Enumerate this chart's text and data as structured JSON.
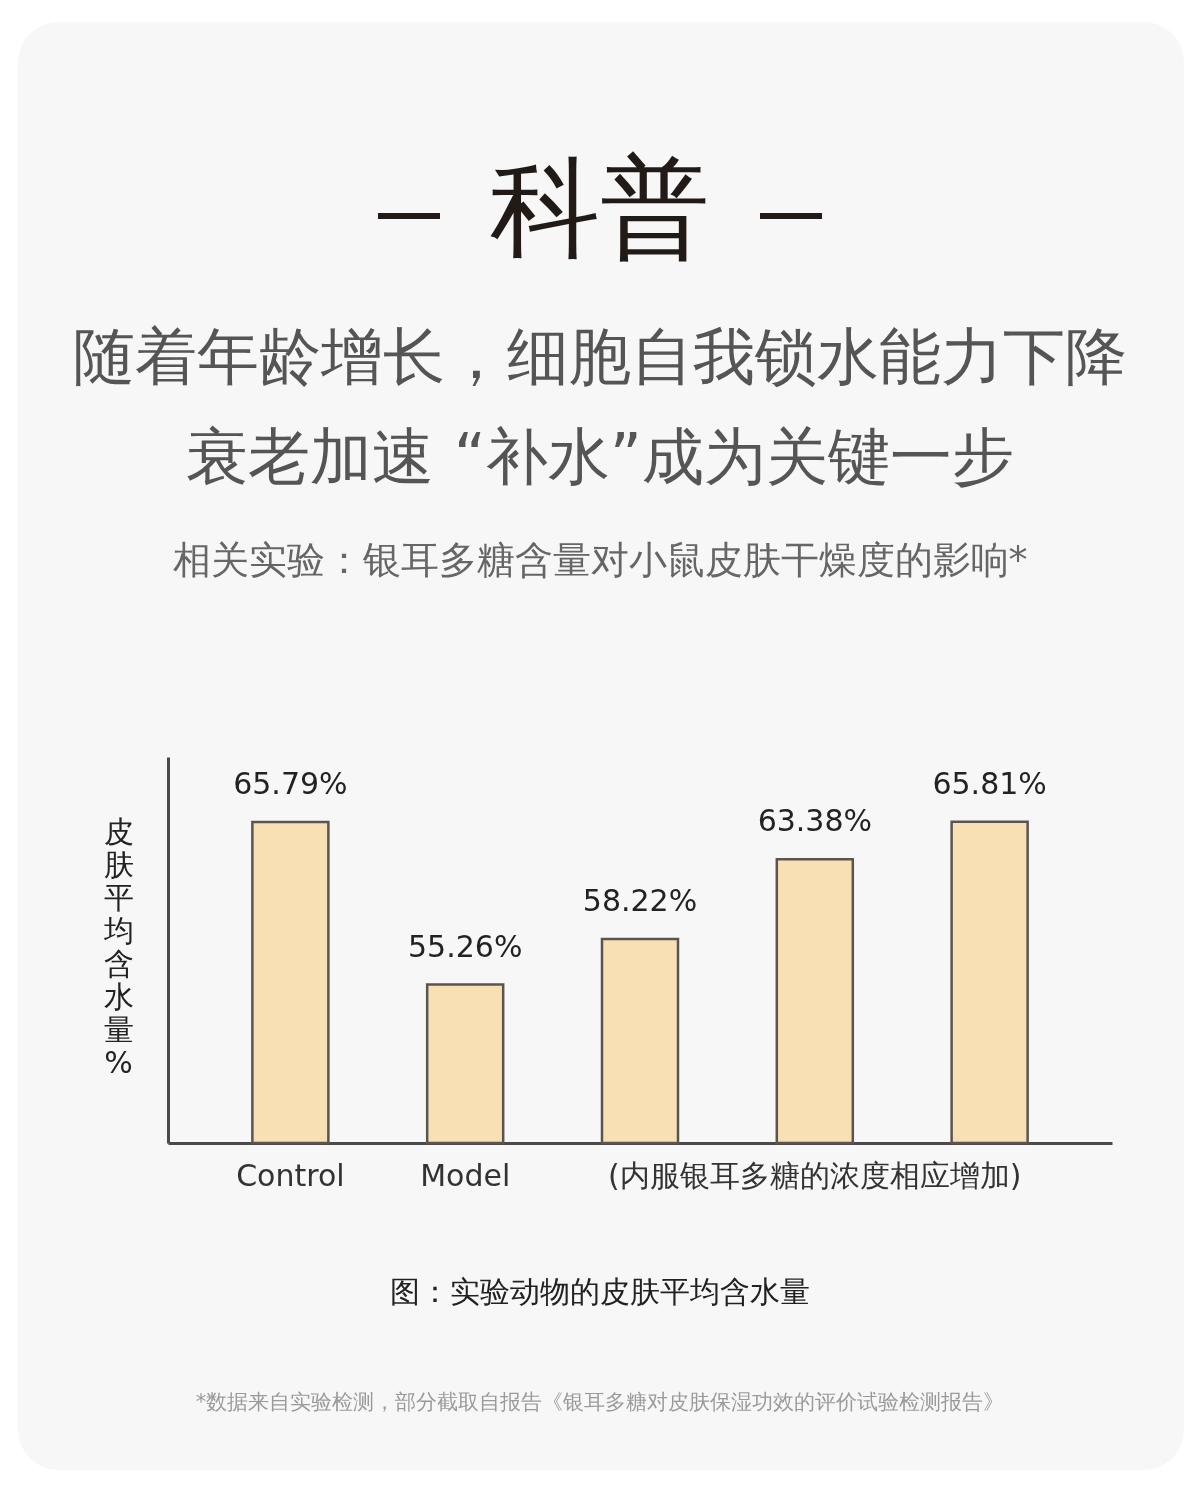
{
  "chart_data": {
    "type": "bar",
    "title": "科普",
    "subtitle": "随着年龄增长，细胞自我锁水能力下降",
    "categories": [
      "Control",
      "Model",
      null,
      "(内服银耳多糖的浓度相应增加)",
      null
    ],
    "values": [
      65.79,
      55.26,
      58.22,
      63.38,
      65.81
    ],
    "value_labels": [
      "65.79%",
      "55.26%",
      "58.22%",
      "63.38%",
      "65.81%"
    ],
    "color": "#f8dfb4",
    "ylim": [
      45,
      70
    ],
    "ylabel": "皮肤平均含水量%",
    "tick_labels": "x",
    "grid": false,
    "annotations": [
      "衰老加速 “补水”成为关键一步",
      "相关实验：银耳多糖含量对小鼠皮肤干燥度的影响*",
      "图：实验动物的皮肤平均含水量",
      "*数据来自实验检测，部分截取自报告《银耳多糖对皮肤保湿功效的评价试验检测报告》"
    ]
  }
}
